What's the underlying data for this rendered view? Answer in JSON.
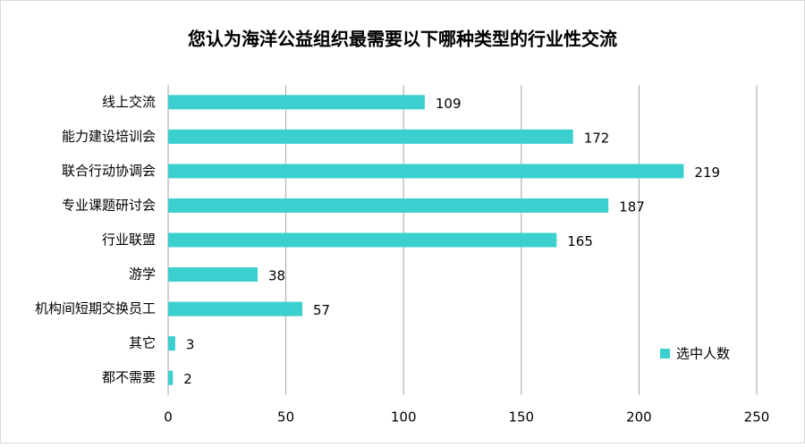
{
  "chart_data": {
    "type": "bar",
    "orientation": "horizontal",
    "title": "您认为海洋公益组织最需要以下哪种类型的行业性交流",
    "categories": [
      "线上交流",
      "能力建设培训会",
      "联合行动协调会",
      "专业课题研讨会",
      "行业联盟",
      "游学",
      "机构间短期交换员工",
      "其它",
      "都不需要"
    ],
    "series": [
      {
        "name": "选中人数",
        "color": "#3ccfcf",
        "values": [
          109,
          172,
          219,
          187,
          165,
          38,
          57,
          3,
          2
        ]
      }
    ],
    "xlim": [
      0,
      250
    ],
    "xticks": [
      0,
      50,
      100,
      150,
      200,
      250
    ],
    "grid": true,
    "legend": "right"
  }
}
